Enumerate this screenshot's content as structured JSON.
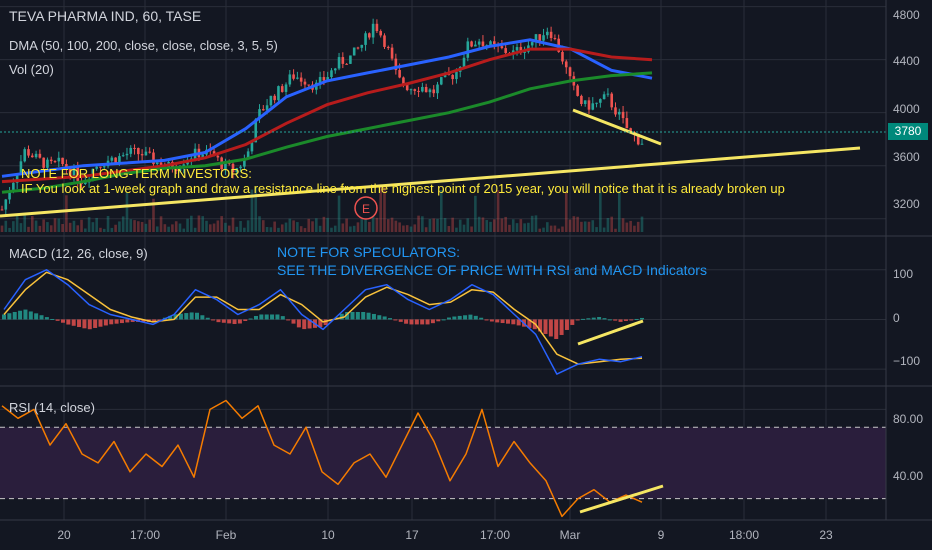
{
  "header": {
    "symbol_line": "TEVA PHARMA IND, 60, TASE",
    "dma_line": "DMA (50, 100, 200, close, close, close, 3, 5, 5)",
    "vol_line": "Vol (20)",
    "macd_line": "MACD (12, 26, close, 9)",
    "rsi_line": "RSI (14, close)"
  },
  "notes": {
    "long_title": "NOTE FOR LONG-TERM INVESTORS:",
    "long_text": "IF You look at 1-week graph and draw a resistance line from the highest point of 2015 year, you will notice that it is already broken up",
    "spec_title": "NOTE FOR SPECULATORS:",
    "spec_text": "SEE THE DIVERGENCE OF PRICE WITH RSI and MACD Indicators",
    "event_marker": "E"
  },
  "price_axis": {
    "ticks": [
      "4800",
      "4400",
      "4000",
      "3600",
      "3200"
    ],
    "current_price": "3780"
  },
  "macd_axis": {
    "ticks": [
      "100",
      "0",
      "−100"
    ]
  },
  "rsi_axis": {
    "ticks": [
      "80.00",
      "40.00"
    ],
    "upper_band": 70,
    "lower_band": 30
  },
  "time_axis": {
    "ticks": [
      "20",
      "17:00",
      "Feb",
      "10",
      "17",
      "17:00",
      "Mar",
      "9",
      "18:00",
      "23"
    ]
  },
  "colors": {
    "background": "#131722",
    "grid": "#2a2e39",
    "up_candle": "#26a69a",
    "down_candle": "#ef5350",
    "dma50": "#2962ff",
    "dma100": "#b71c1c",
    "dma200": "#1b8a2a",
    "trendline": "#f5e663",
    "macd_line": "#2962ff",
    "signal_line": "#f9c23c",
    "rsi_line": "#f57c00",
    "rsi_band": "#2a1e3c",
    "note_yellow": "#ffeb3b",
    "note_blue": "#2196f3"
  },
  "chart_data": [
    {
      "type": "candlestick",
      "title": "TEVA PHARMA IND, 60, TASE",
      "ylim": [
        3100,
        4850
      ],
      "price_path": [
        3270,
        3500,
        3720,
        3650,
        3600,
        3620,
        3560,
        3480,
        3600,
        3640,
        3660,
        3700,
        3690,
        3640,
        3590,
        3600,
        3670,
        3700,
        3690,
        3600,
        3560,
        3660,
        3980,
        4100,
        4180,
        4280,
        4250,
        4200,
        4280,
        4380,
        4420,
        4520,
        4680,
        4520,
        4250,
        4190,
        4200,
        4150,
        4250,
        4300,
        4500,
        4550,
        4500,
        4470,
        4450,
        4500,
        4560,
        4640,
        4450,
        4190,
        4050,
        4060,
        4120,
        3980,
        3840,
        3780
      ],
      "series": [
        {
          "name": "DMA 50",
          "values": [
            3520,
            3560,
            3600,
            3620,
            3640,
            3700,
            3880,
            4120,
            4240,
            4300,
            4360,
            4420,
            4500,
            4550,
            4480,
            4320,
            4260
          ]
        },
        {
          "name": "DMA 100",
          "values": [
            3480,
            3500,
            3520,
            3560,
            3600,
            3660,
            3760,
            3920,
            4060,
            4150,
            4220,
            4300,
            4400,
            4480,
            4480,
            4420,
            4400
          ]
        },
        {
          "name": "DMA 200",
          "values": [
            3400,
            3430,
            3480,
            3540,
            3580,
            3600,
            3650,
            3740,
            3820,
            3880,
            3940,
            4000,
            4080,
            4180,
            4240,
            4280,
            4300
          ]
        }
      ],
      "trendlines": [
        {
          "from": [
            0,
            3200
          ],
          "to": [
            1,
            3640
          ],
          "label": "resistance"
        },
        {
          "from": [
            0.74,
            3990
          ],
          "to": [
            0.86,
            3720
          ],
          "label": "lower highs"
        }
      ]
    },
    {
      "type": "line",
      "title": "MACD (12, 26, close, 9)",
      "ylim": [
        -130,
        160
      ],
      "macd": [
        20,
        80,
        100,
        70,
        30,
        10,
        0,
        -10,
        10,
        60,
        40,
        10,
        30,
        60,
        10,
        -20,
        20,
        60,
        70,
        40,
        20,
        40,
        70,
        50,
        10,
        -30,
        -110,
        -90,
        -80,
        -85,
        -75
      ],
      "signal": [
        10,
        60,
        95,
        80,
        50,
        20,
        5,
        -5,
        0,
        45,
        45,
        20,
        20,
        50,
        30,
        -5,
        5,
        45,
        65,
        50,
        30,
        35,
        60,
        55,
        20,
        -10,
        -70,
        -90,
        -85,
        -80,
        -78
      ],
      "histogram": [
        10,
        20,
        5,
        -10,
        -20,
        -10,
        -5,
        -5,
        10,
        15,
        -5,
        -10,
        10,
        10,
        -20,
        -15,
        15,
        15,
        5,
        -10,
        -10,
        5,
        10,
        -5,
        -10,
        -20,
        -40,
        0,
        5,
        -5,
        3
      ]
    },
    {
      "type": "line",
      "title": "RSI (14, close)",
      "ylim": [
        18,
        92
      ],
      "values": [
        82,
        75,
        80,
        60,
        72,
        55,
        50,
        62,
        45,
        55,
        48,
        60,
        42,
        80,
        85,
        75,
        82,
        60,
        55,
        70,
        45,
        38,
        50,
        55,
        42,
        60,
        78,
        62,
        40,
        55,
        80,
        48,
        62,
        50,
        40,
        20,
        30,
        35,
        28,
        32,
        28
      ],
      "bands": [
        70,
        30
      ]
    }
  ]
}
